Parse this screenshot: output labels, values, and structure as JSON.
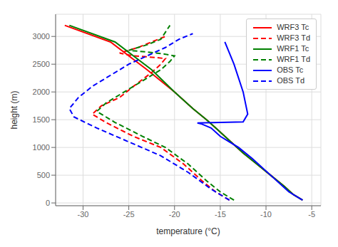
{
  "chart_data": {
    "type": "line",
    "xlabel": "temperature (°C)",
    "ylabel": "height (m)",
    "xlim": [
      -33,
      -4
    ],
    "ylim": [
      -50,
      3400
    ],
    "xticks": [
      -30,
      -25,
      -20,
      -15,
      -10,
      -5
    ],
    "yticks": [
      0,
      500,
      1000,
      1500,
      2000,
      2500,
      3000
    ],
    "grid": true,
    "legend": "upper right",
    "series": [
      {
        "name": "WRF3 Tc",
        "color": "red",
        "line_style": "solid",
        "x": [
          -6.0,
          -7.0,
          -8.0,
          -9.5,
          -11.0,
          -12.5,
          -13.5,
          -14.5,
          -15.5,
          -16.5,
          -18.0,
          -20.0,
          -23.0,
          -27.0,
          -32.0
        ],
        "values": [
          50,
          150,
          300,
          500,
          700,
          900,
          1050,
          1200,
          1350,
          1500,
          1700,
          2000,
          2400,
          2900,
          3200
        ]
      },
      {
        "name": "WRF3 Td",
        "color": "red",
        "line_style": "dashed",
        "x": [
          -14.0,
          -15.5,
          -17.0,
          -19.0,
          -21.5,
          -24.5,
          -27.5,
          -29.0,
          -28.0,
          -26.0,
          -24.5,
          -22.5,
          -21.5,
          -21.0,
          -22.0,
          -24.5,
          -26.0,
          -24.0,
          -22.5,
          -21.0
        ],
        "values": [
          50,
          200,
          400,
          700,
          1000,
          1200,
          1450,
          1600,
          1750,
          1900,
          2100,
          2350,
          2500,
          2600,
          2620,
          2650,
          2700,
          2800,
          2900,
          3000
        ]
      },
      {
        "name": "WRF1 Tc",
        "color": "green",
        "line_style": "solid",
        "x": [
          -6.0,
          -7.0,
          -8.0,
          -9.5,
          -11.0,
          -12.5,
          -13.5,
          -14.5,
          -15.5,
          -16.5,
          -18.0,
          -20.0,
          -22.5,
          -26.5,
          -31.5
        ],
        "values": [
          50,
          150,
          300,
          500,
          700,
          900,
          1050,
          1200,
          1350,
          1500,
          1700,
          2000,
          2400,
          2900,
          3200
        ]
      },
      {
        "name": "WRF1 Td",
        "color": "green",
        "line_style": "dashed",
        "x": [
          -13.5,
          -15.0,
          -16.5,
          -18.5,
          -21.0,
          -23.5,
          -26.5,
          -28.5,
          -27.5,
          -25.5,
          -23.5,
          -21.5,
          -20.5,
          -20.0,
          -21.0,
          -23.0,
          -25.0,
          -23.0,
          -21.5,
          -20.5
        ],
        "values": [
          50,
          200,
          400,
          700,
          1000,
          1200,
          1450,
          1650,
          1800,
          2000,
          2200,
          2400,
          2550,
          2650,
          2680,
          2720,
          2750,
          2850,
          2950,
          3200
        ]
      },
      {
        "name": "OBS Tc",
        "color": "blue",
        "line_style": "solid",
        "x": [
          -6.0,
          -7.5,
          -9.5,
          -11.5,
          -13.0,
          -14.0,
          -15.0,
          -16.0,
          -17.0,
          -17.5,
          -12.5,
          -12.0,
          -12.5,
          -13.5,
          -14.5
        ],
        "values": [
          50,
          200,
          500,
          800,
          1000,
          1100,
          1200,
          1350,
          1420,
          1440,
          1460,
          1600,
          2000,
          2500,
          2900
        ]
      },
      {
        "name": "OBS Td",
        "color": "blue",
        "line_style": "dashed",
        "x": [
          -14.0,
          -16.0,
          -18.5,
          -21.5,
          -25.0,
          -28.5,
          -31.0,
          -31.5,
          -30.5,
          -29.0,
          -27.0,
          -25.0,
          -23.0,
          -21.0,
          -19.5,
          -18.0
        ],
        "values": [
          50,
          250,
          550,
          850,
          1100,
          1350,
          1550,
          1700,
          1900,
          2100,
          2300,
          2500,
          2650,
          2800,
          2950,
          3050
        ]
      }
    ]
  }
}
